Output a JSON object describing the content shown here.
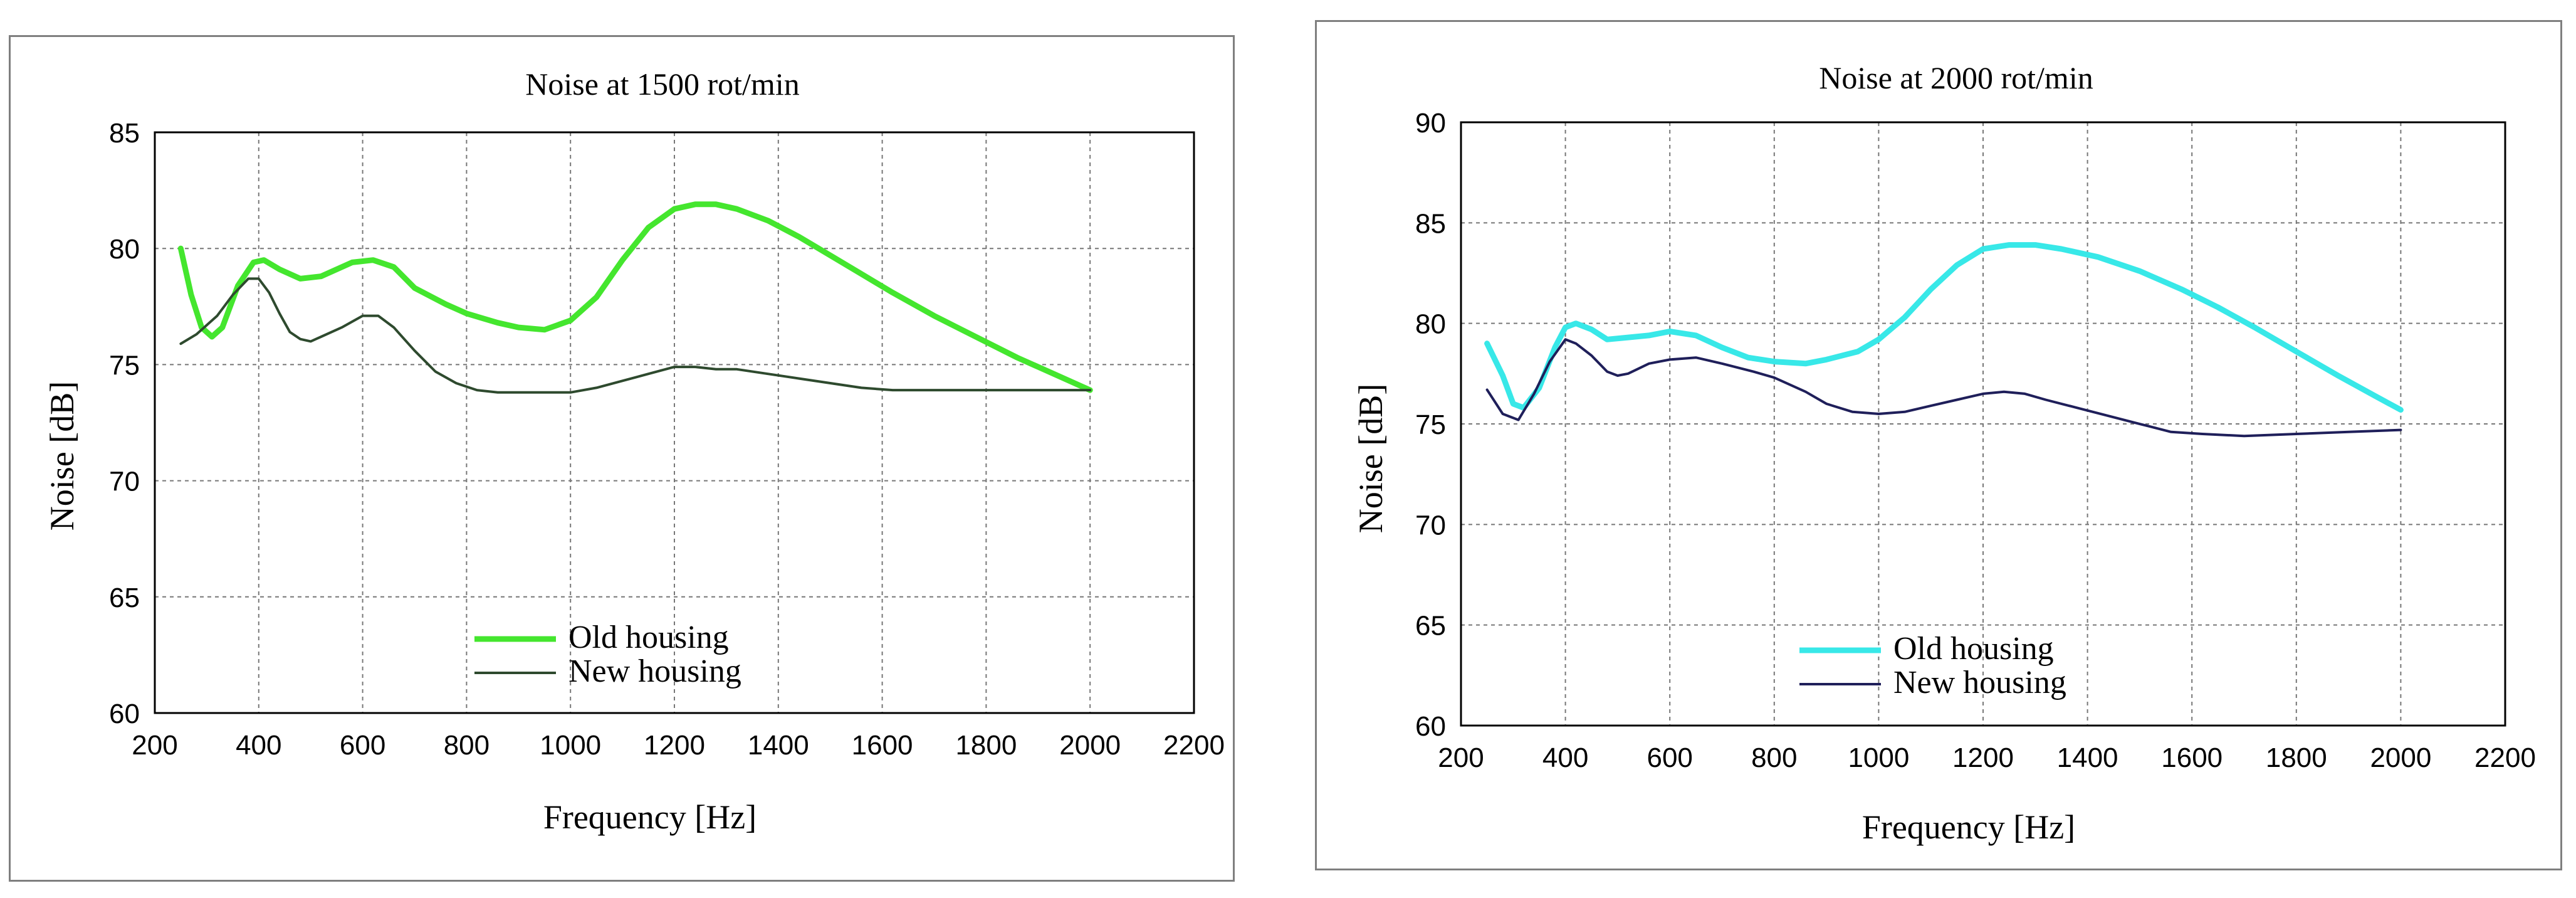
{
  "chart_data": [
    {
      "type": "line",
      "title": "Noise at 1500 rot/min",
      "xlabel": "Frequency [Hz]",
      "ylabel": "Noise [dB]",
      "xlim": [
        200,
        2200
      ],
      "ylim": [
        60,
        85
      ],
      "xticks": [
        200,
        400,
        600,
        800,
        1000,
        1200,
        1400,
        1600,
        1800,
        2000,
        2200
      ],
      "yticks": [
        60,
        65,
        70,
        75,
        80,
        85
      ],
      "grid": true,
      "legend": "bottom-center",
      "series": [
        {
          "name": "Old housing",
          "color": "#44e62e",
          "x": [
            250,
            270,
            290,
            310,
            330,
            360,
            390,
            410,
            440,
            480,
            520,
            580,
            620,
            660,
            700,
            760,
            800,
            860,
            900,
            950,
            1000,
            1050,
            1100,
            1150,
            1200,
            1240,
            1280,
            1320,
            1380,
            1440,
            1500,
            1560,
            1620,
            1700,
            1780,
            1860,
            1940,
            2000
          ],
          "y": [
            80.0,
            78.0,
            76.6,
            76.2,
            76.6,
            78.4,
            79.4,
            79.5,
            79.1,
            78.7,
            78.8,
            79.4,
            79.5,
            79.2,
            78.3,
            77.6,
            77.2,
            76.8,
            76.6,
            76.5,
            76.9,
            77.9,
            79.5,
            80.9,
            81.7,
            81.9,
            81.9,
            81.7,
            81.2,
            80.5,
            79.7,
            78.9,
            78.1,
            77.1,
            76.2,
            75.3,
            74.5,
            73.9
          ]
        },
        {
          "name": "New housing",
          "color": "#2e4a2e",
          "x": [
            250,
            280,
            320,
            350,
            380,
            400,
            420,
            440,
            460,
            480,
            500,
            520,
            560,
            600,
            630,
            660,
            700,
            740,
            780,
            820,
            860,
            900,
            950,
            1000,
            1050,
            1100,
            1150,
            1200,
            1240,
            1280,
            1320,
            1380,
            1440,
            1500,
            1560,
            1620,
            1700,
            1800,
            1900,
            2000
          ],
          "y": [
            75.9,
            76.3,
            77.1,
            78.0,
            78.7,
            78.7,
            78.1,
            77.2,
            76.4,
            76.1,
            76.0,
            76.2,
            76.6,
            77.1,
            77.1,
            76.6,
            75.6,
            74.7,
            74.2,
            73.9,
            73.8,
            73.8,
            73.8,
            73.8,
            74.0,
            74.3,
            74.6,
            74.9,
            74.9,
            74.8,
            74.8,
            74.6,
            74.4,
            74.2,
            74.0,
            73.9,
            73.9,
            73.9,
            73.9,
            73.9
          ]
        }
      ]
    },
    {
      "type": "line",
      "title": "Noise at 2000 rot/min",
      "xlabel": "Frequency [Hz]",
      "ylabel": "Noise [dB]",
      "xlim": [
        200,
        2200
      ],
      "ylim": [
        60,
        90
      ],
      "xticks": [
        200,
        400,
        600,
        800,
        1000,
        1200,
        1400,
        1600,
        1800,
        2000,
        2200
      ],
      "yticks": [
        60,
        65,
        70,
        75,
        80,
        85,
        90
      ],
      "grid": true,
      "legend": "bottom-center",
      "series": [
        {
          "name": "Old housing",
          "color": "#38e8e8",
          "x": [
            250,
            280,
            300,
            320,
            350,
            380,
            400,
            420,
            450,
            480,
            520,
            560,
            600,
            650,
            700,
            750,
            800,
            860,
            900,
            960,
            1000,
            1050,
            1100,
            1150,
            1200,
            1250,
            1300,
            1350,
            1420,
            1500,
            1580,
            1650,
            1720,
            1800,
            1880,
            1950,
            2000
          ],
          "y": [
            79.0,
            77.4,
            76.0,
            75.8,
            76.8,
            78.8,
            79.8,
            80.0,
            79.7,
            79.2,
            79.3,
            79.4,
            79.6,
            79.4,
            78.8,
            78.3,
            78.1,
            78.0,
            78.2,
            78.6,
            79.2,
            80.3,
            81.7,
            82.9,
            83.7,
            83.9,
            83.9,
            83.7,
            83.3,
            82.6,
            81.7,
            80.8,
            79.8,
            78.6,
            77.4,
            76.4,
            75.7
          ]
        },
        {
          "name": "New housing",
          "color": "#1f1f5a",
          "x": [
            250,
            280,
            310,
            340,
            370,
            400,
            420,
            450,
            480,
            500,
            520,
            560,
            600,
            650,
            700,
            760,
            800,
            860,
            900,
            950,
            1000,
            1050,
            1100,
            1150,
            1200,
            1240,
            1280,
            1320,
            1380,
            1440,
            1500,
            1560,
            1620,
            1700,
            1800,
            1900,
            2000
          ],
          "y": [
            76.7,
            75.5,
            75.2,
            76.5,
            78.1,
            79.2,
            79.0,
            78.4,
            77.6,
            77.4,
            77.5,
            78.0,
            78.2,
            78.3,
            78.0,
            77.6,
            77.3,
            76.6,
            76.0,
            75.6,
            75.5,
            75.6,
            75.9,
            76.2,
            76.5,
            76.6,
            76.5,
            76.2,
            75.8,
            75.4,
            75.0,
            74.6,
            74.5,
            74.4,
            74.5,
            74.6,
            74.7
          ]
        }
      ]
    }
  ]
}
